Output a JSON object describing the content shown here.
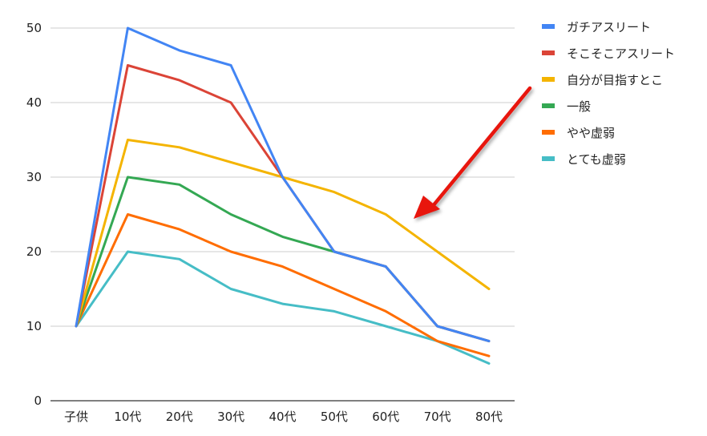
{
  "chart_data": {
    "type": "line",
    "title": "",
    "xlabel": "",
    "ylabel": "",
    "categories": [
      "子供",
      "10代",
      "20代",
      "30代",
      "40代",
      "50代",
      "60代",
      "70代",
      "80代"
    ],
    "ylim": [
      0,
      50
    ],
    "yticks": [
      0,
      10,
      20,
      30,
      40,
      50
    ],
    "grid": true,
    "legend_position": "right",
    "series": [
      {
        "name": "ガチアスリート",
        "color": "#4285F4",
        "values": [
          10,
          50,
          47,
          45,
          30,
          20,
          18,
          10,
          8
        ]
      },
      {
        "name": "そこそこアスリート",
        "color": "#DB4437",
        "values": [
          10,
          45,
          43,
          40,
          30,
          20,
          18,
          10,
          8
        ]
      },
      {
        "name": "自分が目指すとこ",
        "color": "#F4B400",
        "values": [
          10,
          35,
          34,
          32,
          30,
          28,
          25,
          20,
          15
        ]
      },
      {
        "name": "一般",
        "color": "#34A853",
        "values": [
          10,
          30,
          29,
          25,
          22,
          20,
          18,
          10,
          8
        ]
      },
      {
        "name": "やや虚弱",
        "color": "#FF6D01",
        "values": [
          10,
          25,
          23,
          20,
          18,
          15,
          12,
          8,
          6
        ]
      },
      {
        "name": "とても虚弱",
        "color": "#46BDC6",
        "values": [
          10,
          20,
          19,
          15,
          13,
          12,
          10,
          8,
          5
        ]
      }
    ],
    "annotation": {
      "type": "arrow",
      "color": "#E8120C",
      "direction": "pointing down-left toward the 60代 region"
    }
  }
}
